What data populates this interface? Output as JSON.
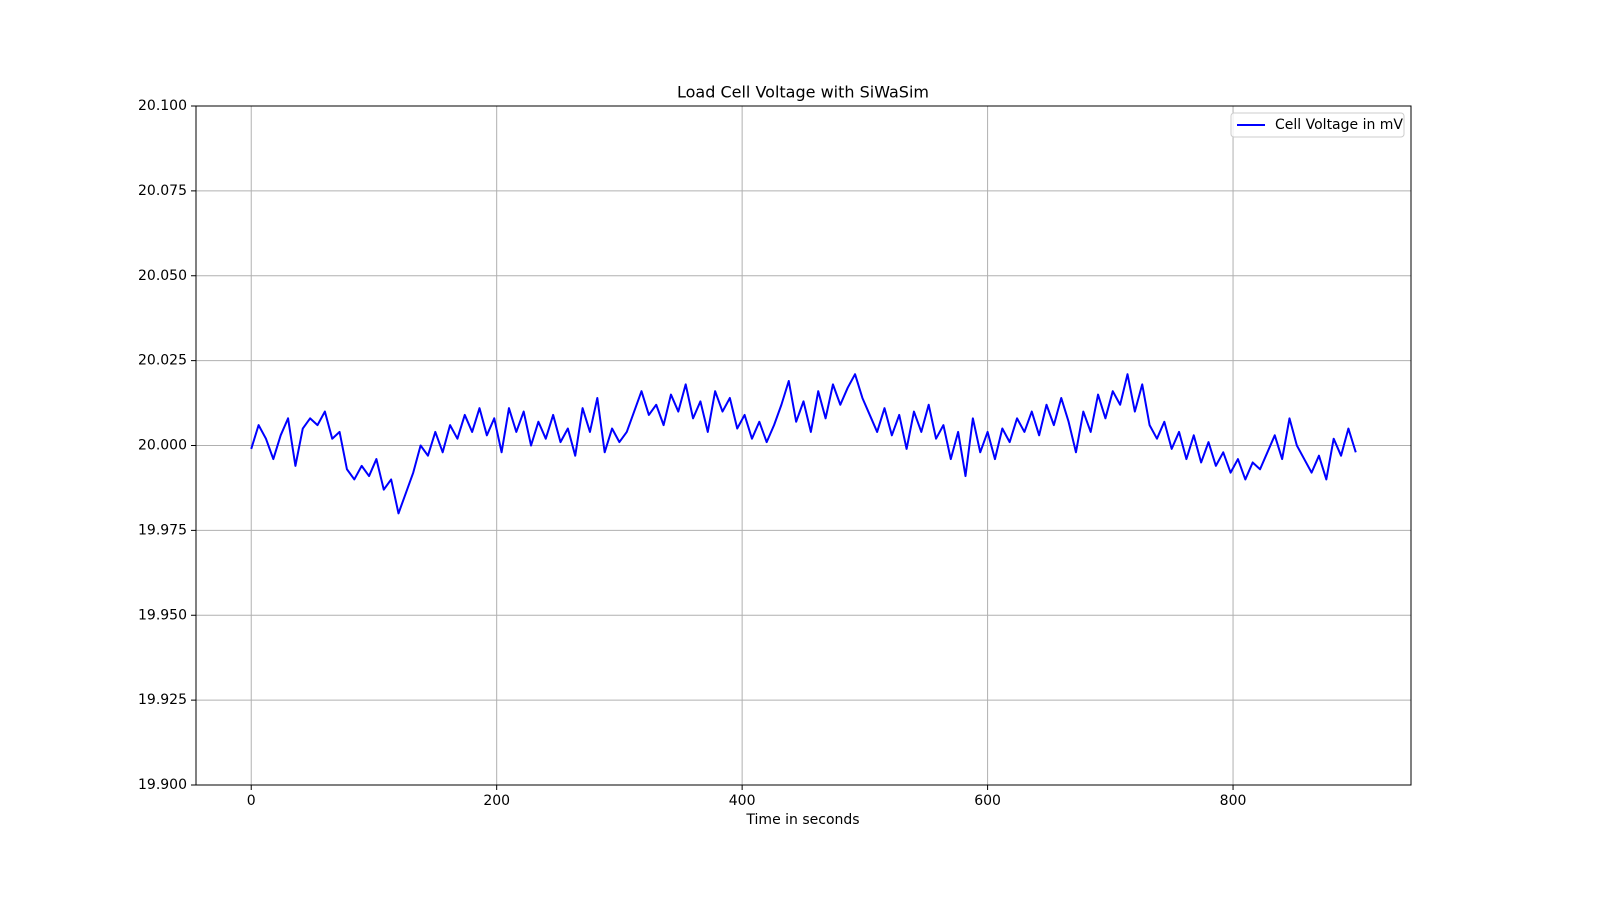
{
  "chart_data": {
    "type": "line",
    "title": "Load Cell Voltage with SiWaSim",
    "x_label": "Time in seconds",
    "x": [
      0,
      6,
      12,
      18,
      24,
      30,
      36,
      42,
      48,
      54,
      60,
      66,
      72,
      78,
      84,
      90,
      96,
      102,
      108,
      114,
      120,
      126,
      132,
      138,
      144,
      150,
      156,
      162,
      168,
      174,
      180,
      186,
      192,
      198,
      204,
      210,
      216,
      222,
      228,
      234,
      240,
      246,
      252,
      258,
      264,
      270,
      276,
      282,
      288,
      294,
      300,
      306,
      312,
      318,
      324,
      330,
      336,
      342,
      348,
      354,
      360,
      366,
      372,
      378,
      384,
      390,
      396,
      402,
      408,
      414,
      420,
      426,
      432,
      438,
      444,
      450,
      456,
      462,
      468,
      474,
      480,
      486,
      492,
      498,
      504,
      510,
      516,
      522,
      528,
      534,
      540,
      546,
      552,
      558,
      564,
      570,
      576,
      582,
      588,
      594,
      600,
      606,
      612,
      618,
      624,
      630,
      636,
      642,
      648,
      654,
      660,
      666,
      672,
      678,
      684,
      690,
      696,
      702,
      708,
      714,
      720,
      726,
      732,
      738,
      744,
      750,
      756,
      762,
      768,
      774,
      780,
      786,
      792,
      798,
      804,
      810,
      816,
      822,
      828,
      834,
      840,
      846,
      852,
      858,
      864,
      870,
      876,
      882,
      888,
      894,
      900
    ],
    "series": [
      {
        "name": "Cell Voltage in mV",
        "color": "#0000ff",
        "values": [
          19.999,
          20.006,
          20.002,
          19.996,
          20.003,
          20.008,
          19.994,
          20.005,
          20.008,
          20.006,
          20.01,
          20.002,
          20.004,
          19.993,
          19.99,
          19.994,
          19.991,
          19.996,
          19.987,
          19.99,
          19.98,
          19.986,
          19.992,
          20.0,
          19.997,
          20.004,
          19.998,
          20.006,
          20.002,
          20.009,
          20.004,
          20.011,
          20.003,
          20.008,
          19.998,
          20.011,
          20.004,
          20.01,
          20.0,
          20.007,
          20.002,
          20.009,
          20.001,
          20.005,
          19.997,
          20.011,
          20.004,
          20.014,
          19.998,
          20.005,
          20.001,
          20.004,
          20.01,
          20.016,
          20.009,
          20.012,
          20.006,
          20.015,
          20.01,
          20.018,
          20.008,
          20.013,
          20.004,
          20.016,
          20.01,
          20.014,
          20.005,
          20.009,
          20.002,
          20.007,
          20.001,
          20.006,
          20.012,
          20.019,
          20.007,
          20.013,
          20.004,
          20.016,
          20.008,
          20.018,
          20.012,
          20.017,
          20.021,
          20.014,
          20.009,
          20.004,
          20.011,
          20.003,
          20.009,
          19.999,
          20.01,
          20.004,
          20.012,
          20.002,
          20.006,
          19.996,
          20.004,
          19.991,
          20.008,
          19.998,
          20.004,
          19.996,
          20.005,
          20.001,
          20.008,
          20.004,
          20.01,
          20.003,
          20.012,
          20.006,
          20.014,
          20.007,
          19.998,
          20.01,
          20.004,
          20.015,
          20.008,
          20.016,
          20.012,
          20.021,
          20.01,
          20.018,
          20.006,
          20.002,
          20.007,
          19.999,
          20.004,
          19.996,
          20.003,
          19.995,
          20.001,
          19.994,
          19.998,
          19.992,
          19.996,
          19.99,
          19.995,
          19.993,
          19.998,
          20.003,
          19.996,
          20.008,
          20.0,
          19.996,
          19.992,
          19.997,
          19.99,
          20.002,
          19.997,
          20.005,
          19.998
        ]
      }
    ],
    "xlim": [
      -45,
      945
    ],
    "xticks": [
      0,
      200,
      400,
      600,
      800
    ],
    "ylim": [
      19.9,
      20.1
    ],
    "yticks": [
      {
        "value": 19.9,
        "label": "19.900"
      },
      {
        "value": 19.925,
        "label": "19.925"
      },
      {
        "value": 19.95,
        "label": "19.950"
      },
      {
        "value": 19.975,
        "label": "19.975"
      },
      {
        "value": 20.0,
        "label": "20.000"
      },
      {
        "value": 20.025,
        "label": "20.025"
      },
      {
        "value": 20.05,
        "label": "20.050"
      },
      {
        "value": 20.075,
        "label": "20.075"
      },
      {
        "value": 20.1,
        "label": "20.100"
      }
    ],
    "grid": true,
    "legend": "upper right"
  }
}
